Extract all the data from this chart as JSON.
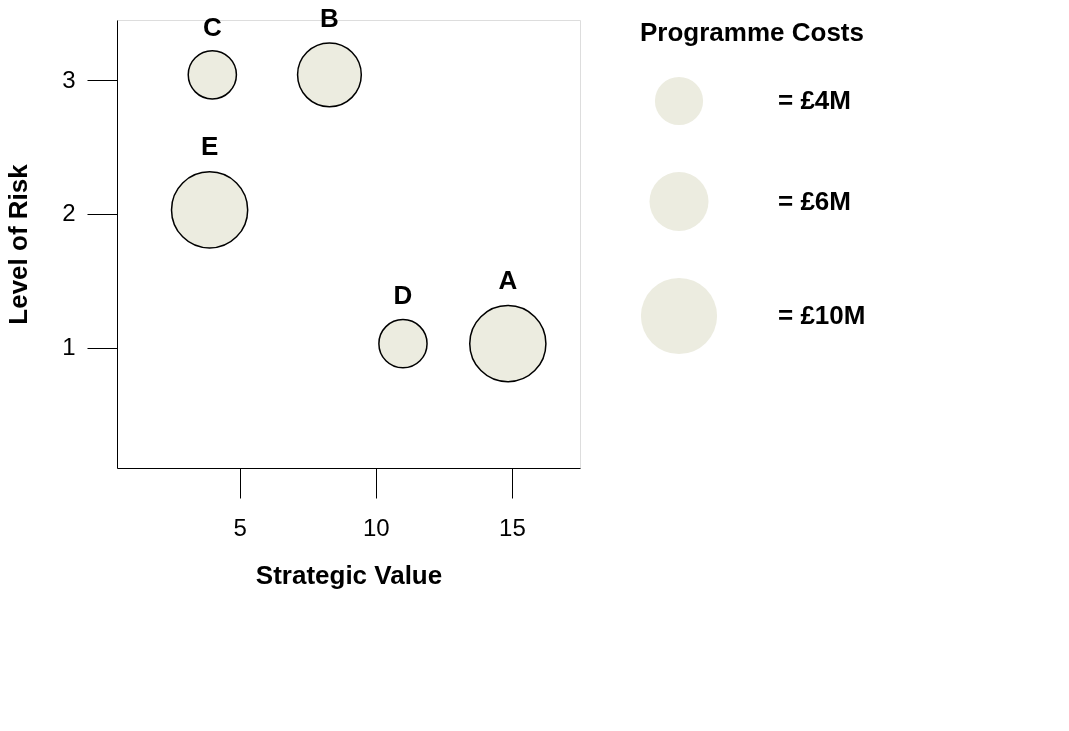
{
  "chart_data": {
    "type": "bubble",
    "xlabel": "Strategic Value",
    "ylabel": "Level of Risk",
    "legend_title": "Programme Costs",
    "xlim": [
      0.5,
      17.5
    ],
    "xticks": [
      5,
      10,
      15
    ],
    "ylim": [
      0.1,
      3.45
    ],
    "yticks": [
      1,
      2,
      3
    ],
    "grid": false,
    "legend": "top right",
    "size_legend": [
      {
        "value": 4,
        "label": "=  £4M"
      },
      {
        "value": 6,
        "label": "=  £6M"
      },
      {
        "value": 10,
        "label": "= £10M"
      }
    ],
    "series": [
      {
        "name": "C",
        "color": "#ececE0",
        "x": [
          4.0
        ],
        "values": [
          3.04
        ],
        "sizes": [
          4
        ]
      },
      {
        "name": "B",
        "color": "#ececE0",
        "x": [
          8.3
        ],
        "values": [
          3.04
        ],
        "sizes": [
          7
        ]
      },
      {
        "name": "E",
        "color": "#ececE0",
        "x": [
          3.9
        ],
        "values": [
          2.03
        ],
        "sizes": [
          10
        ]
      },
      {
        "name": "D",
        "color": "#ececE0",
        "x": [
          11.0
        ],
        "values": [
          1.03
        ],
        "sizes": [
          4
        ]
      },
      {
        "name": "A",
        "color": "#ececE0",
        "x": [
          14.85
        ],
        "values": [
          1.03
        ],
        "sizes": [
          10
        ]
      }
    ]
  }
}
